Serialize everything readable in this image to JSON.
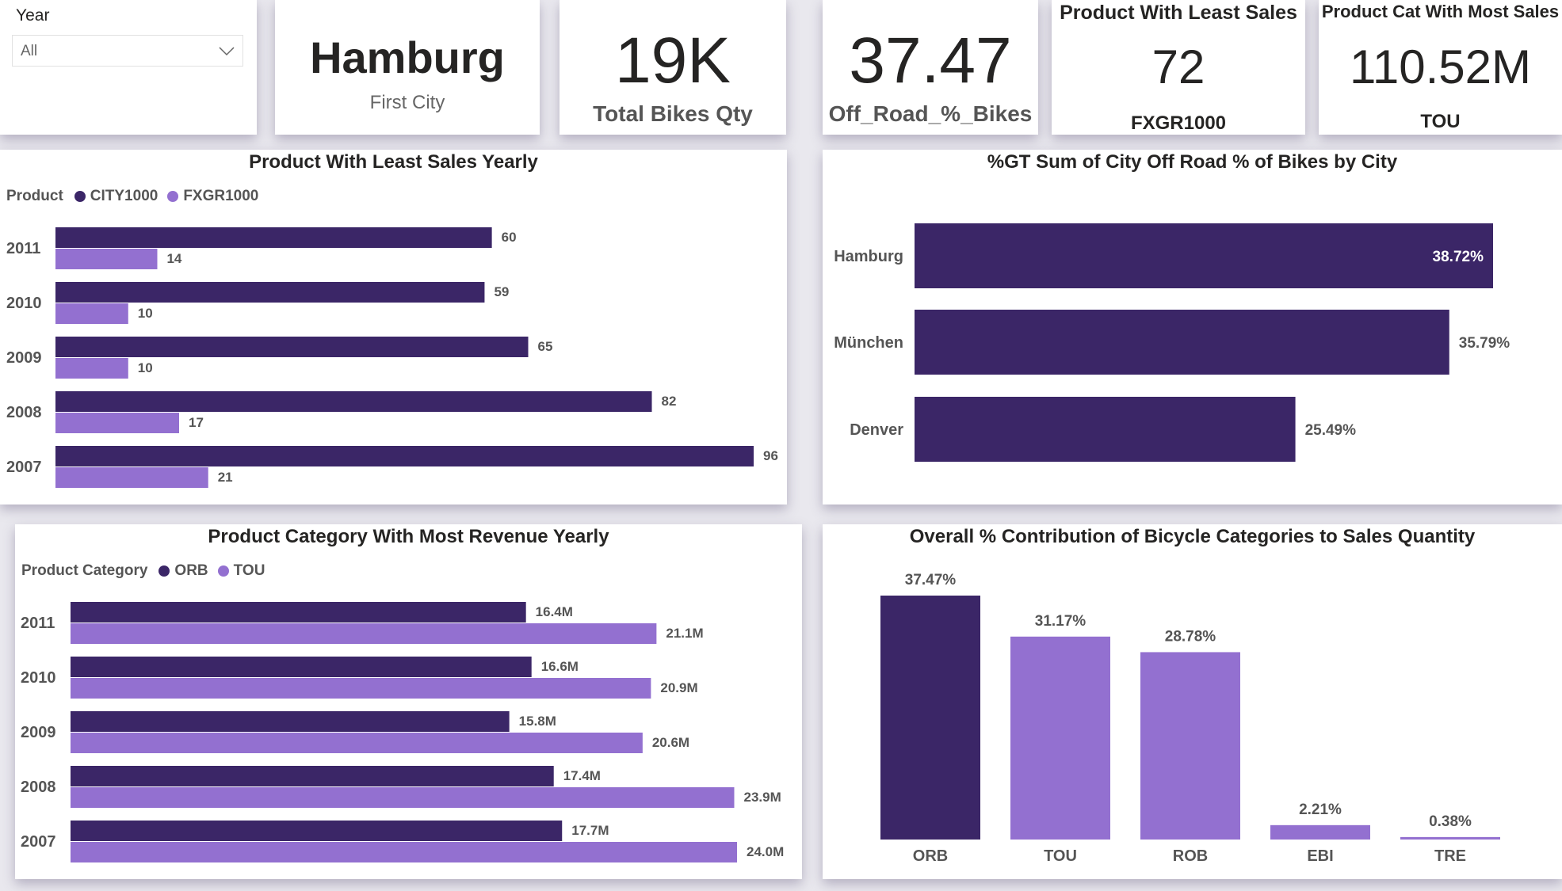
{
  "colors": {
    "dark": "#3b2667",
    "light": "#9370d0",
    "text": "#252423",
    "muted": "#555555"
  },
  "slicer": {
    "label": "Year",
    "value": "All",
    "icon": "chevron-down-icon"
  },
  "kpis": [
    {
      "value": "Hamburg",
      "label": "First City"
    },
    {
      "value": "19K",
      "label": "Total Bikes Qty"
    },
    {
      "value": "37.47",
      "label": "Off_Road_%_Bikes"
    },
    {
      "title": "Product With Least Sales",
      "value": "72",
      "label": "FXGR1000"
    },
    {
      "title": "Product Cat With Most Sales",
      "value": "110.52M",
      "label": "TOU"
    }
  ],
  "chart_data": [
    {
      "type": "bar",
      "orientation": "horizontal",
      "title": "Product With Least Sales Yearly",
      "legend_title": "Product",
      "legend_position": "top-left",
      "categories": [
        "2011",
        "2010",
        "2009",
        "2008",
        "2007"
      ],
      "series": [
        {
          "name": "CITY1000",
          "color": "#3b2667",
          "values": [
            60,
            59,
            65,
            82,
            96
          ],
          "labels": [
            "60",
            "59",
            "65",
            "82",
            "96"
          ]
        },
        {
          "name": "FXGR1000",
          "color": "#9370d0",
          "values": [
            14,
            10,
            10,
            17,
            21
          ],
          "labels": [
            "14",
            "10",
            "10",
            "17",
            "21"
          ]
        }
      ]
    },
    {
      "type": "bar",
      "orientation": "horizontal",
      "title": "%GT Sum of City Off Road % of Bikes by City",
      "categories": [
        "Hamburg",
        "München",
        "Denver"
      ],
      "series": [
        {
          "color": "#3b2667",
          "values": [
            38.72,
            35.79,
            25.49
          ],
          "labels": [
            "38.72%",
            "35.79%",
            "25.49%"
          ]
        }
      ]
    },
    {
      "type": "bar",
      "orientation": "horizontal",
      "title": "Product Category With Most Revenue Yearly",
      "legend_title": "Product Category",
      "legend_position": "top-left",
      "categories": [
        "2011",
        "2010",
        "2009",
        "2008",
        "2007"
      ],
      "series": [
        {
          "name": "ORB",
          "color": "#3b2667",
          "values": [
            16.4,
            16.6,
            15.8,
            17.4,
            17.7
          ],
          "labels": [
            "16.4M",
            "16.6M",
            "15.8M",
            "17.4M",
            "17.7M"
          ]
        },
        {
          "name": "TOU",
          "color": "#9370d0",
          "values": [
            21.1,
            20.9,
            20.6,
            23.9,
            24.0
          ],
          "labels": [
            "21.1M",
            "20.9M",
            "20.6M",
            "23.9M",
            "24.0M"
          ]
        }
      ]
    },
    {
      "type": "bar",
      "orientation": "vertical",
      "title": "Overall % Contribution of Bicycle Categories to Sales Quantity",
      "categories": [
        "ORB",
        "TOU",
        "ROB",
        "EBI",
        "TRE"
      ],
      "values": [
        37.47,
        31.17,
        28.78,
        2.21,
        0.38
      ],
      "labels": [
        "37.47%",
        "31.17%",
        "28.78%",
        "2.21%",
        "0.38%"
      ],
      "colors": [
        "#3b2667",
        "#9370d0",
        "#9370d0",
        "#9370d0",
        "#9370d0"
      ]
    }
  ]
}
